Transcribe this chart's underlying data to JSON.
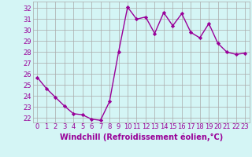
{
  "x": [
    0,
    1,
    2,
    3,
    4,
    5,
    6,
    7,
    8,
    9,
    10,
    11,
    12,
    13,
    14,
    15,
    16,
    17,
    18,
    19,
    20,
    21,
    22,
    23
  ],
  "y": [
    25.7,
    24.7,
    23.9,
    23.1,
    22.4,
    22.3,
    21.9,
    21.8,
    23.5,
    28.0,
    32.1,
    31.0,
    31.2,
    29.7,
    31.6,
    30.4,
    31.5,
    29.8,
    29.3,
    30.6,
    28.8,
    28.0,
    27.8,
    27.9
  ],
  "line_color": "#990099",
  "marker": "D",
  "marker_size": 2.2,
  "bg_color": "#d4f5f5",
  "grid_color": "#aaaaaa",
  "xlabel": "Windchill (Refroidissement éolien,°C)",
  "xlabel_fontsize": 7.0,
  "ylabel_ticks": [
    22,
    23,
    24,
    25,
    26,
    27,
    28,
    29,
    30,
    31,
    32
  ],
  "xticks": [
    0,
    1,
    2,
    3,
    4,
    5,
    6,
    7,
    8,
    9,
    10,
    11,
    12,
    13,
    14,
    15,
    16,
    17,
    18,
    19,
    20,
    21,
    22,
    23
  ],
  "ylim": [
    21.6,
    32.6
  ],
  "xlim": [
    -0.5,
    23.5
  ],
  "tick_color": "#990099",
  "tick_fontsize": 6.0,
  "line_width": 1.0
}
